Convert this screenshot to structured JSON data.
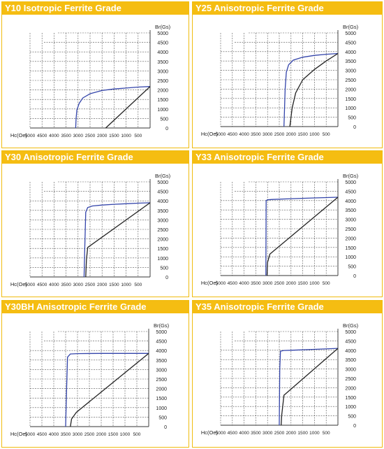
{
  "colors": {
    "title_bg": "#f5bd12",
    "title_text": "#ffffff",
    "panel_border": "#f0bc0f",
    "grid": "#555555",
    "demag_curve": "#3344aa",
    "induction_curve": "#222222"
  },
  "chart_data": [
    {
      "type": "line",
      "title": "Y10 Isotropic Ferrite Grade",
      "xlabel": "Hc(Oe)",
      "ylabel": "Br(Gs)",
      "xlim": [
        5000,
        0
      ],
      "ylim": [
        0,
        5000
      ],
      "x_ticks": [
        "5000",
        "4500",
        "4000",
        "3500",
        "3000",
        "2500",
        "2000",
        "1500",
        "1000",
        "500"
      ],
      "y_ticks": [
        "0",
        "500",
        "1000",
        "1500",
        "2000",
        "2500",
        "3000",
        "3500",
        "4000",
        "4500",
        "5000"
      ],
      "series": [
        {
          "role": "demagnetization",
          "x": [
            0,
            500,
            1000,
            1500,
            2000,
            2500,
            2800,
            2950,
            3050,
            3080,
            3100
          ],
          "y": [
            2180,
            2150,
            2100,
            2050,
            1970,
            1800,
            1580,
            1300,
            950,
            500,
            0
          ]
        },
        {
          "role": "induction",
          "x": [
            0,
            1850
          ],
          "y": [
            2180,
            0
          ]
        }
      ]
    },
    {
      "type": "line",
      "title": "Y25 Anisotropic Ferrite Grade",
      "xlabel": "Hc(Oe)",
      "ylabel": "Br(Gs)",
      "xlim": [
        5000,
        0
      ],
      "ylim": [
        0,
        5000
      ],
      "x_ticks": [
        "5000",
        "4500",
        "4000",
        "3500",
        "3000",
        "2500",
        "2000",
        "1500",
        "1000",
        "500"
      ],
      "y_ticks": [
        "0",
        "500",
        "1000",
        "1500",
        "2000",
        "2500",
        "3000",
        "3500",
        "4000",
        "4500",
        "5000"
      ],
      "series": [
        {
          "role": "demagnetization",
          "x": [
            0,
            500,
            1000,
            1500,
            1900,
            2100,
            2200,
            2250,
            2280,
            2300
          ],
          "y": [
            3900,
            3860,
            3800,
            3700,
            3550,
            3300,
            2900,
            2000,
            800,
            0
          ]
        },
        {
          "role": "induction",
          "x": [
            0,
            500,
            1000,
            1500,
            1800,
            1950,
            2000,
            2050
          ],
          "y": [
            3900,
            3500,
            3050,
            2500,
            1800,
            1000,
            500,
            0
          ]
        }
      ]
    },
    {
      "type": "line",
      "title": "Y30 Anisotropic Ferrite Grade",
      "xlabel": "Hc(Oe)",
      "ylabel": "Br(Gs)",
      "xlim": [
        5000,
        0
      ],
      "ylim": [
        0,
        5000
      ],
      "x_ticks": [
        "5000",
        "4500",
        "4000",
        "3500",
        "3000",
        "2500",
        "2000",
        "1500",
        "1000",
        "500"
      ],
      "y_ticks": [
        "0",
        "500",
        "1000",
        "1500",
        "2000",
        "2500",
        "3000",
        "3500",
        "4000",
        "4500",
        "5000"
      ],
      "series": [
        {
          "role": "demagnetization",
          "x": [
            0,
            500,
            1000,
            1500,
            2000,
            2400,
            2600,
            2680,
            2720,
            2750
          ],
          "y": [
            3900,
            3880,
            3850,
            3820,
            3780,
            3730,
            3650,
            3400,
            1500,
            0
          ]
        },
        {
          "role": "induction",
          "x": [
            0,
            2600,
            2650,
            2680
          ],
          "y": [
            3900,
            1550,
            900,
            0
          ]
        }
      ]
    },
    {
      "type": "line",
      "title": "Y33 Anisotropic Ferrite Grade",
      "xlabel": "Hc(Oe)",
      "ylabel": "Br(Gs)",
      "xlim": [
        5000,
        0
      ],
      "ylim": [
        0,
        5000
      ],
      "x_ticks": [
        "5000",
        "4500",
        "4000",
        "3500",
        "3000",
        "2500",
        "2000",
        "1500",
        "1000",
        "500"
      ],
      "y_ticks": [
        "0",
        "500",
        "1000",
        "1500",
        "2000",
        "2500",
        "3000",
        "3500",
        "4000",
        "4500",
        "5000"
      ],
      "series": [
        {
          "role": "demagnetization",
          "x": [
            0,
            1000,
            2000,
            2800,
            3000,
            3060,
            3070
          ],
          "y": [
            4180,
            4140,
            4100,
            4060,
            4040,
            4000,
            0
          ]
        },
        {
          "role": "induction",
          "x": [
            0,
            2900,
            3000,
            3020
          ],
          "y": [
            4180,
            1150,
            700,
            0
          ]
        }
      ]
    },
    {
      "type": "line",
      "title": "Y30BH Anisotropic Ferrite Grade",
      "xlabel": "Hc(Oe)",
      "ylabel": "Br(Gs)",
      "xlim": [
        5000,
        0
      ],
      "ylim": [
        0,
        5000
      ],
      "x_ticks": [
        "5000",
        "4500",
        "4000",
        "3500",
        "3000",
        "2500",
        "2000",
        "1500",
        "1000",
        "500"
      ],
      "y_ticks": [
        "0",
        "500",
        "1000",
        "1500",
        "2000",
        "2500",
        "3000",
        "3500",
        "4000",
        "4500",
        "5000"
      ],
      "series": [
        {
          "role": "demagnetization",
          "x": [
            0,
            1000,
            2000,
            3000,
            3300,
            3420,
            3460,
            3500
          ],
          "y": [
            3850,
            3850,
            3850,
            3840,
            3820,
            3650,
            2000,
            0
          ]
        },
        {
          "role": "induction",
          "x": [
            0,
            3050,
            3250,
            3300
          ],
          "y": [
            3850,
            750,
            400,
            0
          ]
        }
      ]
    },
    {
      "type": "line",
      "title": "Y35 Anisotropic Ferrite Grade",
      "xlabel": "Hc(Oe)",
      "ylabel": "Br(Gs)",
      "xlim": [
        5000,
        0
      ],
      "ylim": [
        0,
        5000
      ],
      "x_ticks": [
        "5000",
        "4500",
        "4000",
        "3500",
        "3000",
        "2500",
        "2000",
        "1500",
        "1000",
        "500"
      ],
      "y_ticks": [
        "0",
        "500",
        "1000",
        "1500",
        "2000",
        "2500",
        "3000",
        "3500",
        "4000",
        "4500",
        "5000"
      ],
      "series": [
        {
          "role": "demagnetization",
          "x": [
            0,
            1000,
            2000,
            2300,
            2450,
            2480,
            2500
          ],
          "y": [
            4100,
            4050,
            4000,
            3990,
            3950,
            3000,
            0
          ]
        },
        {
          "role": "induction",
          "x": [
            0,
            2300,
            2400,
            2420
          ],
          "y": [
            4100,
            1600,
            500,
            0
          ]
        }
      ]
    }
  ]
}
